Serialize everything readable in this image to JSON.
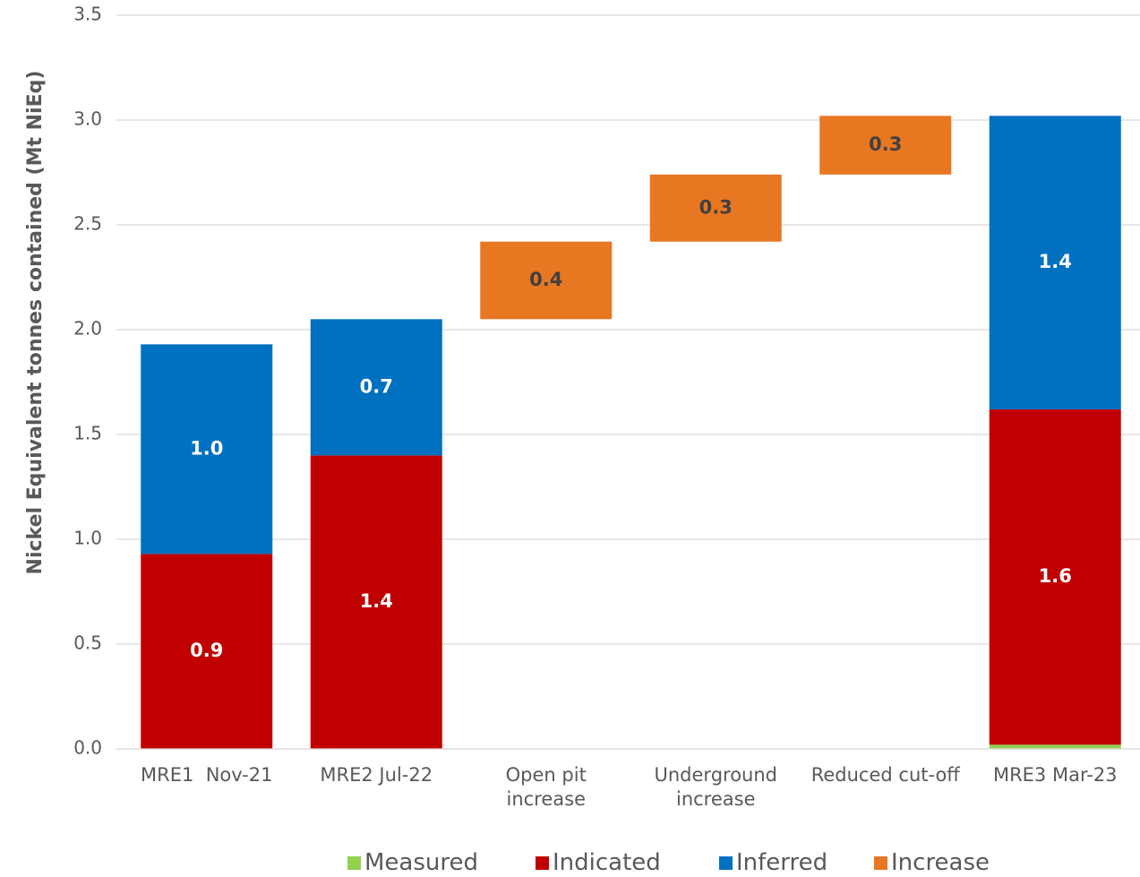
{
  "chart_data": {
    "type": "waterfall",
    "y_label": "Nickel Equivalent tonnes contained (Mt NiEq)",
    "categories": [
      "MRE1  Nov-21",
      "MRE2 Jul-22",
      "Open pit increase",
      "Underground increase",
      "Reduced cut-off",
      "MRE3 Mar-23"
    ],
    "series": [
      {
        "name": "Measured",
        "color": "#92d050",
        "values": [
          null,
          null,
          null,
          null,
          null,
          0.02
        ]
      },
      {
        "name": "Indicated",
        "color": "#c00000",
        "values": [
          0.93,
          1.4,
          null,
          null,
          null,
          1.6
        ],
        "value_labels": [
          "0.9",
          "1.4",
          null,
          null,
          null,
          "1.6"
        ]
      },
      {
        "name": "Inferred",
        "color": "#0070c0",
        "values": [
          1.0,
          0.65,
          null,
          null,
          null,
          1.4
        ],
        "value_labels": [
          "1.0",
          "0.7",
          null,
          null,
          null,
          "1.4"
        ]
      },
      {
        "name": "Increase",
        "color": "#e87722",
        "values": [
          null,
          null,
          0.37,
          0.32,
          0.28,
          null
        ],
        "value_labels": [
          null,
          null,
          "0.4",
          "0.3",
          "0.3",
          null
        ]
      }
    ],
    "ylim": [
      0,
      3.5
    ],
    "yticks": [
      {
        "value": 0,
        "label": "0.0"
      },
      {
        "value": 0.5,
        "label": "0.5"
      },
      {
        "value": 1,
        "label": "1.0"
      },
      {
        "value": 1.5,
        "label": "1.5"
      },
      {
        "value": 2,
        "label": "2.0"
      },
      {
        "value": 2.5,
        "label": "2.5"
      },
      {
        "value": 3,
        "label": "3.0"
      },
      {
        "value": 3.5,
        "label": "3.5"
      }
    ],
    "grid": true,
    "legend": "bottom"
  }
}
